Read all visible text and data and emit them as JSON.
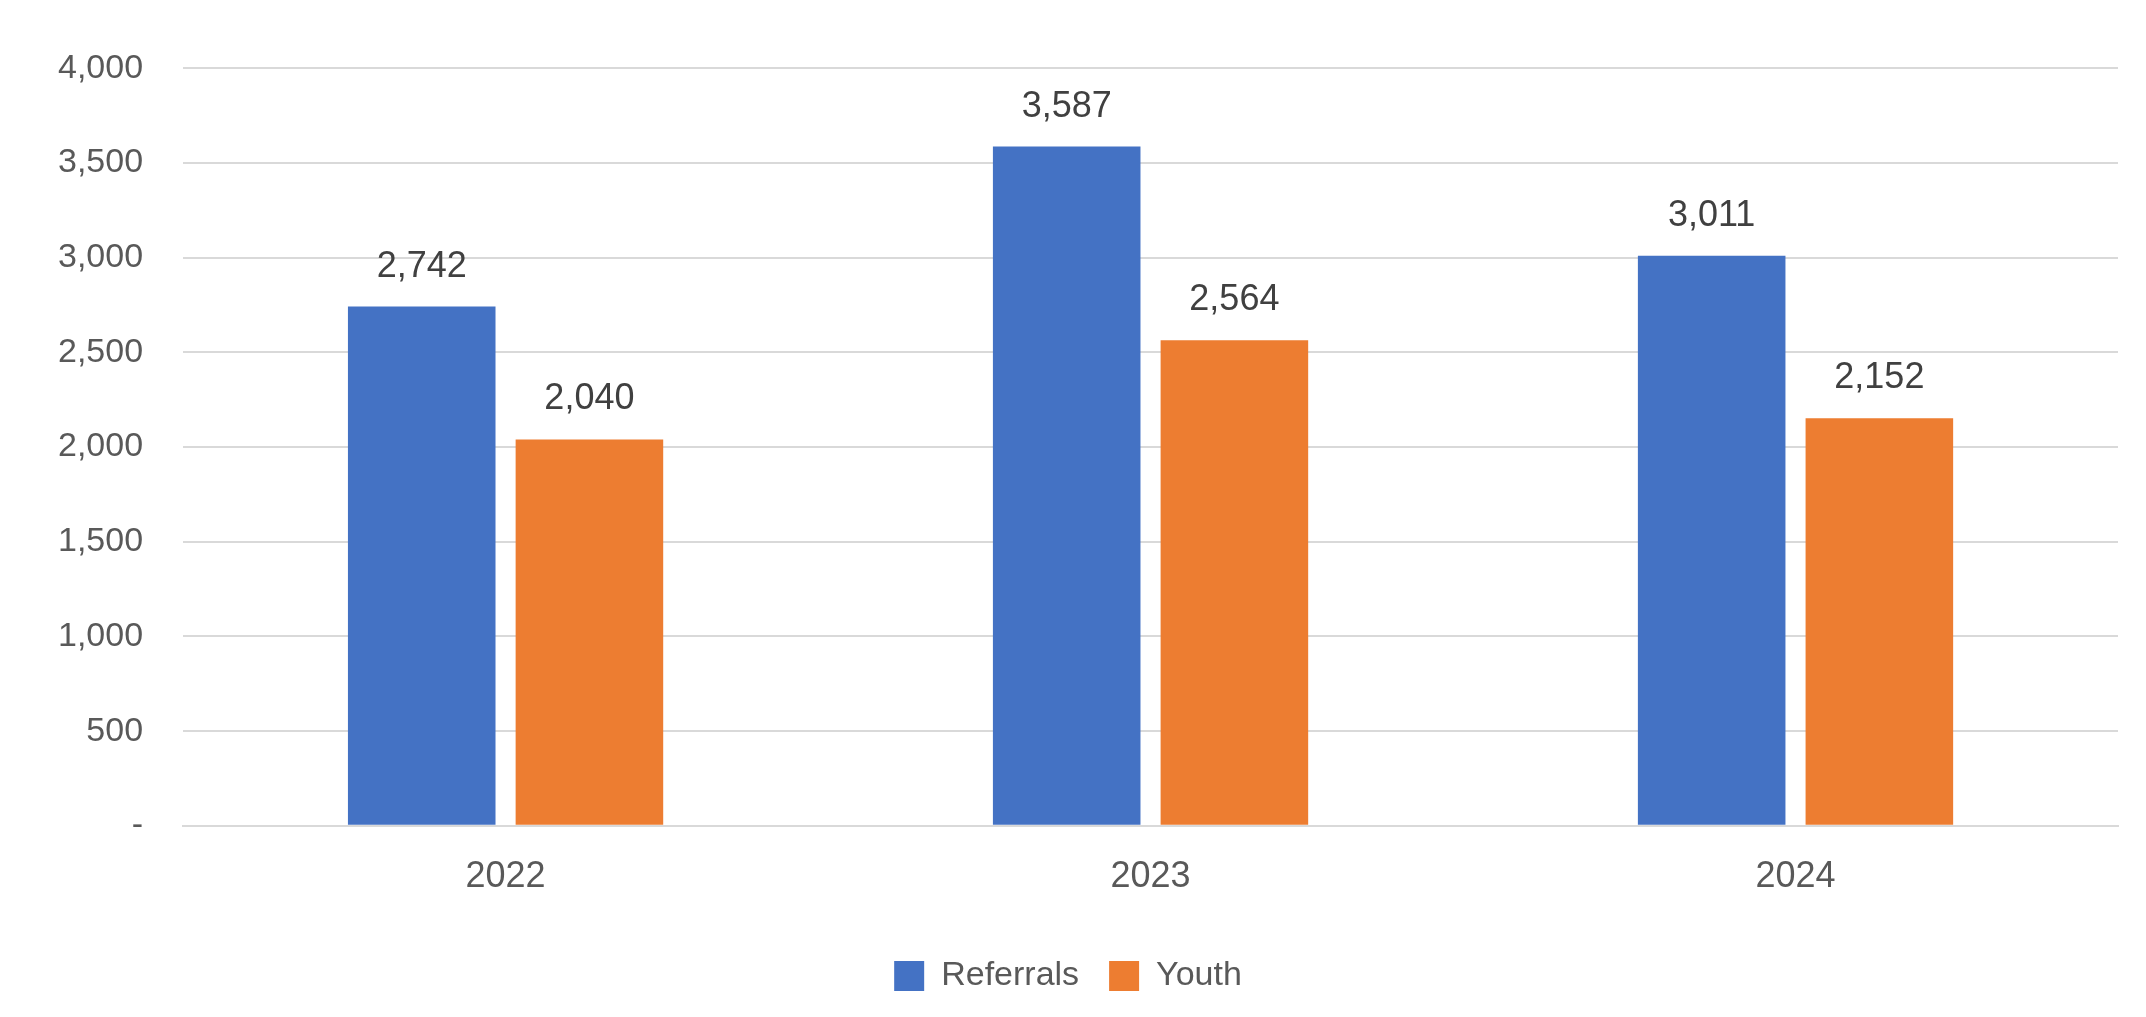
{
  "chart_data": {
    "type": "bar",
    "categories": [
      "2022",
      "2023",
      "2024"
    ],
    "series": [
      {
        "name": "Referrals",
        "color": "#4472c4",
        "values": [
          2742,
          3587,
          3011
        ],
        "value_labels": [
          "2,742",
          "3,587",
          "3,011"
        ]
      },
      {
        "name": "Youth",
        "color": "#ed7d31",
        "values": [
          2040,
          2564,
          2152
        ],
        "value_labels": [
          "2,040",
          "2,564",
          "2,152"
        ]
      }
    ],
    "ylim": [
      0,
      4000
    ],
    "yticks": [
      {
        "value": 0,
        "label": "-"
      },
      500,
      {
        "value": 1000,
        "label": "1,000"
      },
      {
        "value": 1500,
        "label": "1,500"
      },
      {
        "value": 2000,
        "label": "2,000"
      },
      {
        "value": 2500,
        "label": "2,500"
      },
      {
        "value": 3000,
        "label": "3,000"
      },
      {
        "value": 3500,
        "label": "3,500"
      },
      {
        "value": 4000,
        "label": "4,000"
      }
    ],
    "grid": "y",
    "legend": "bottom"
  }
}
